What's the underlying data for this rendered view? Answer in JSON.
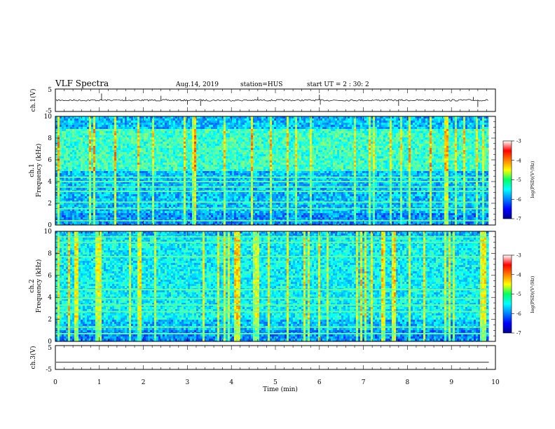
{
  "header": {
    "title": "VLF Spectra",
    "date": "Aug.14, 2019",
    "station": "station=HUS",
    "start": "start  UT =   2 : 30: 2"
  },
  "chart_data": [
    {
      "type": "line",
      "panel": "ch1-waveform",
      "ylabel": "ch.1(V)",
      "yticks": [
        "5",
        "-5"
      ],
      "ylim": [
        -5,
        5
      ],
      "x_units": "min",
      "xlim": [
        0,
        10
      ],
      "trace_end_min": 9.85,
      "baseline": 0.0,
      "spikes": [
        {
          "x": 1.05,
          "y": 3.0
        },
        {
          "x": 1.6,
          "y": 1.5
        },
        {
          "x": 2.4,
          "y": 2.0
        },
        {
          "x": 3.0,
          "y": -2.0
        },
        {
          "x": 3.3,
          "y": -2.5
        },
        {
          "x": 4.6,
          "y": 1.5
        },
        {
          "x": 6.0,
          "y": 2.5
        },
        {
          "x": 6.02,
          "y": -2.0
        },
        {
          "x": 7.8,
          "y": -2.5
        },
        {
          "x": 9.5,
          "y": 1.5
        },
        {
          "x": 9.6,
          "y": -3.0
        }
      ]
    },
    {
      "type": "heatmap",
      "panel": "ch1-spectrogram",
      "ylabel_top": "ch.1",
      "ylabel": "Frequency (kHz)",
      "yticks": [
        "0",
        "2",
        "4",
        "6",
        "8",
        "10"
      ],
      "ylim": [
        0,
        10
      ],
      "xlim": [
        0,
        10
      ],
      "data_end_min": 9.85,
      "colorscale": "jet",
      "zlim": [
        -7,
        -3
      ],
      "bright_band_khz": [
        5,
        9
      ],
      "horizontal_lines_khz": [
        0.4,
        1.5,
        2.1,
        3.1,
        3.5,
        4.0,
        4.4
      ]
    },
    {
      "type": "heatmap",
      "panel": "ch2-spectrogram",
      "ylabel_top": "ch.2",
      "ylabel": "Frequency (kHz)",
      "yticks": [
        "0",
        "2",
        "4",
        "6",
        "8",
        "10"
      ],
      "ylim": [
        0,
        10
      ],
      "xlim": [
        0,
        10
      ],
      "data_end_min": 9.85,
      "colorscale": "jet",
      "zlim": [
        -7,
        -3
      ],
      "bright_band_khz": [
        2,
        9.5
      ],
      "horizontal_lines_khz": [
        0.7,
        1.3,
        2.7,
        3.3,
        3.9,
        4.7,
        7.7,
        9.0,
        9.5
      ]
    },
    {
      "type": "line",
      "panel": "ch3-waveform",
      "ylabel": "ch.3(V)",
      "yticks": [
        "5",
        "-5"
      ],
      "ylim": [
        -5,
        5
      ],
      "xlim": [
        0,
        10
      ],
      "trace_end_min": 9.85,
      "baseline": -2.0
    }
  ],
  "x_axis": {
    "label": "Time (min)",
    "ticks": [
      "0",
      "1",
      "2",
      "3",
      "4",
      "5",
      "6",
      "7",
      "8",
      "9",
      "10"
    ]
  },
  "colorbars": [
    {
      "ticks": [
        "-3",
        "-4",
        "-5",
        "-6",
        "-7"
      ],
      "label": "log(PSD)(V²/Hz)"
    },
    {
      "ticks": [
        "-3",
        "-4",
        "-5",
        "-6",
        "-7"
      ],
      "label": "log(PSD)(V²/Hz)"
    }
  ]
}
